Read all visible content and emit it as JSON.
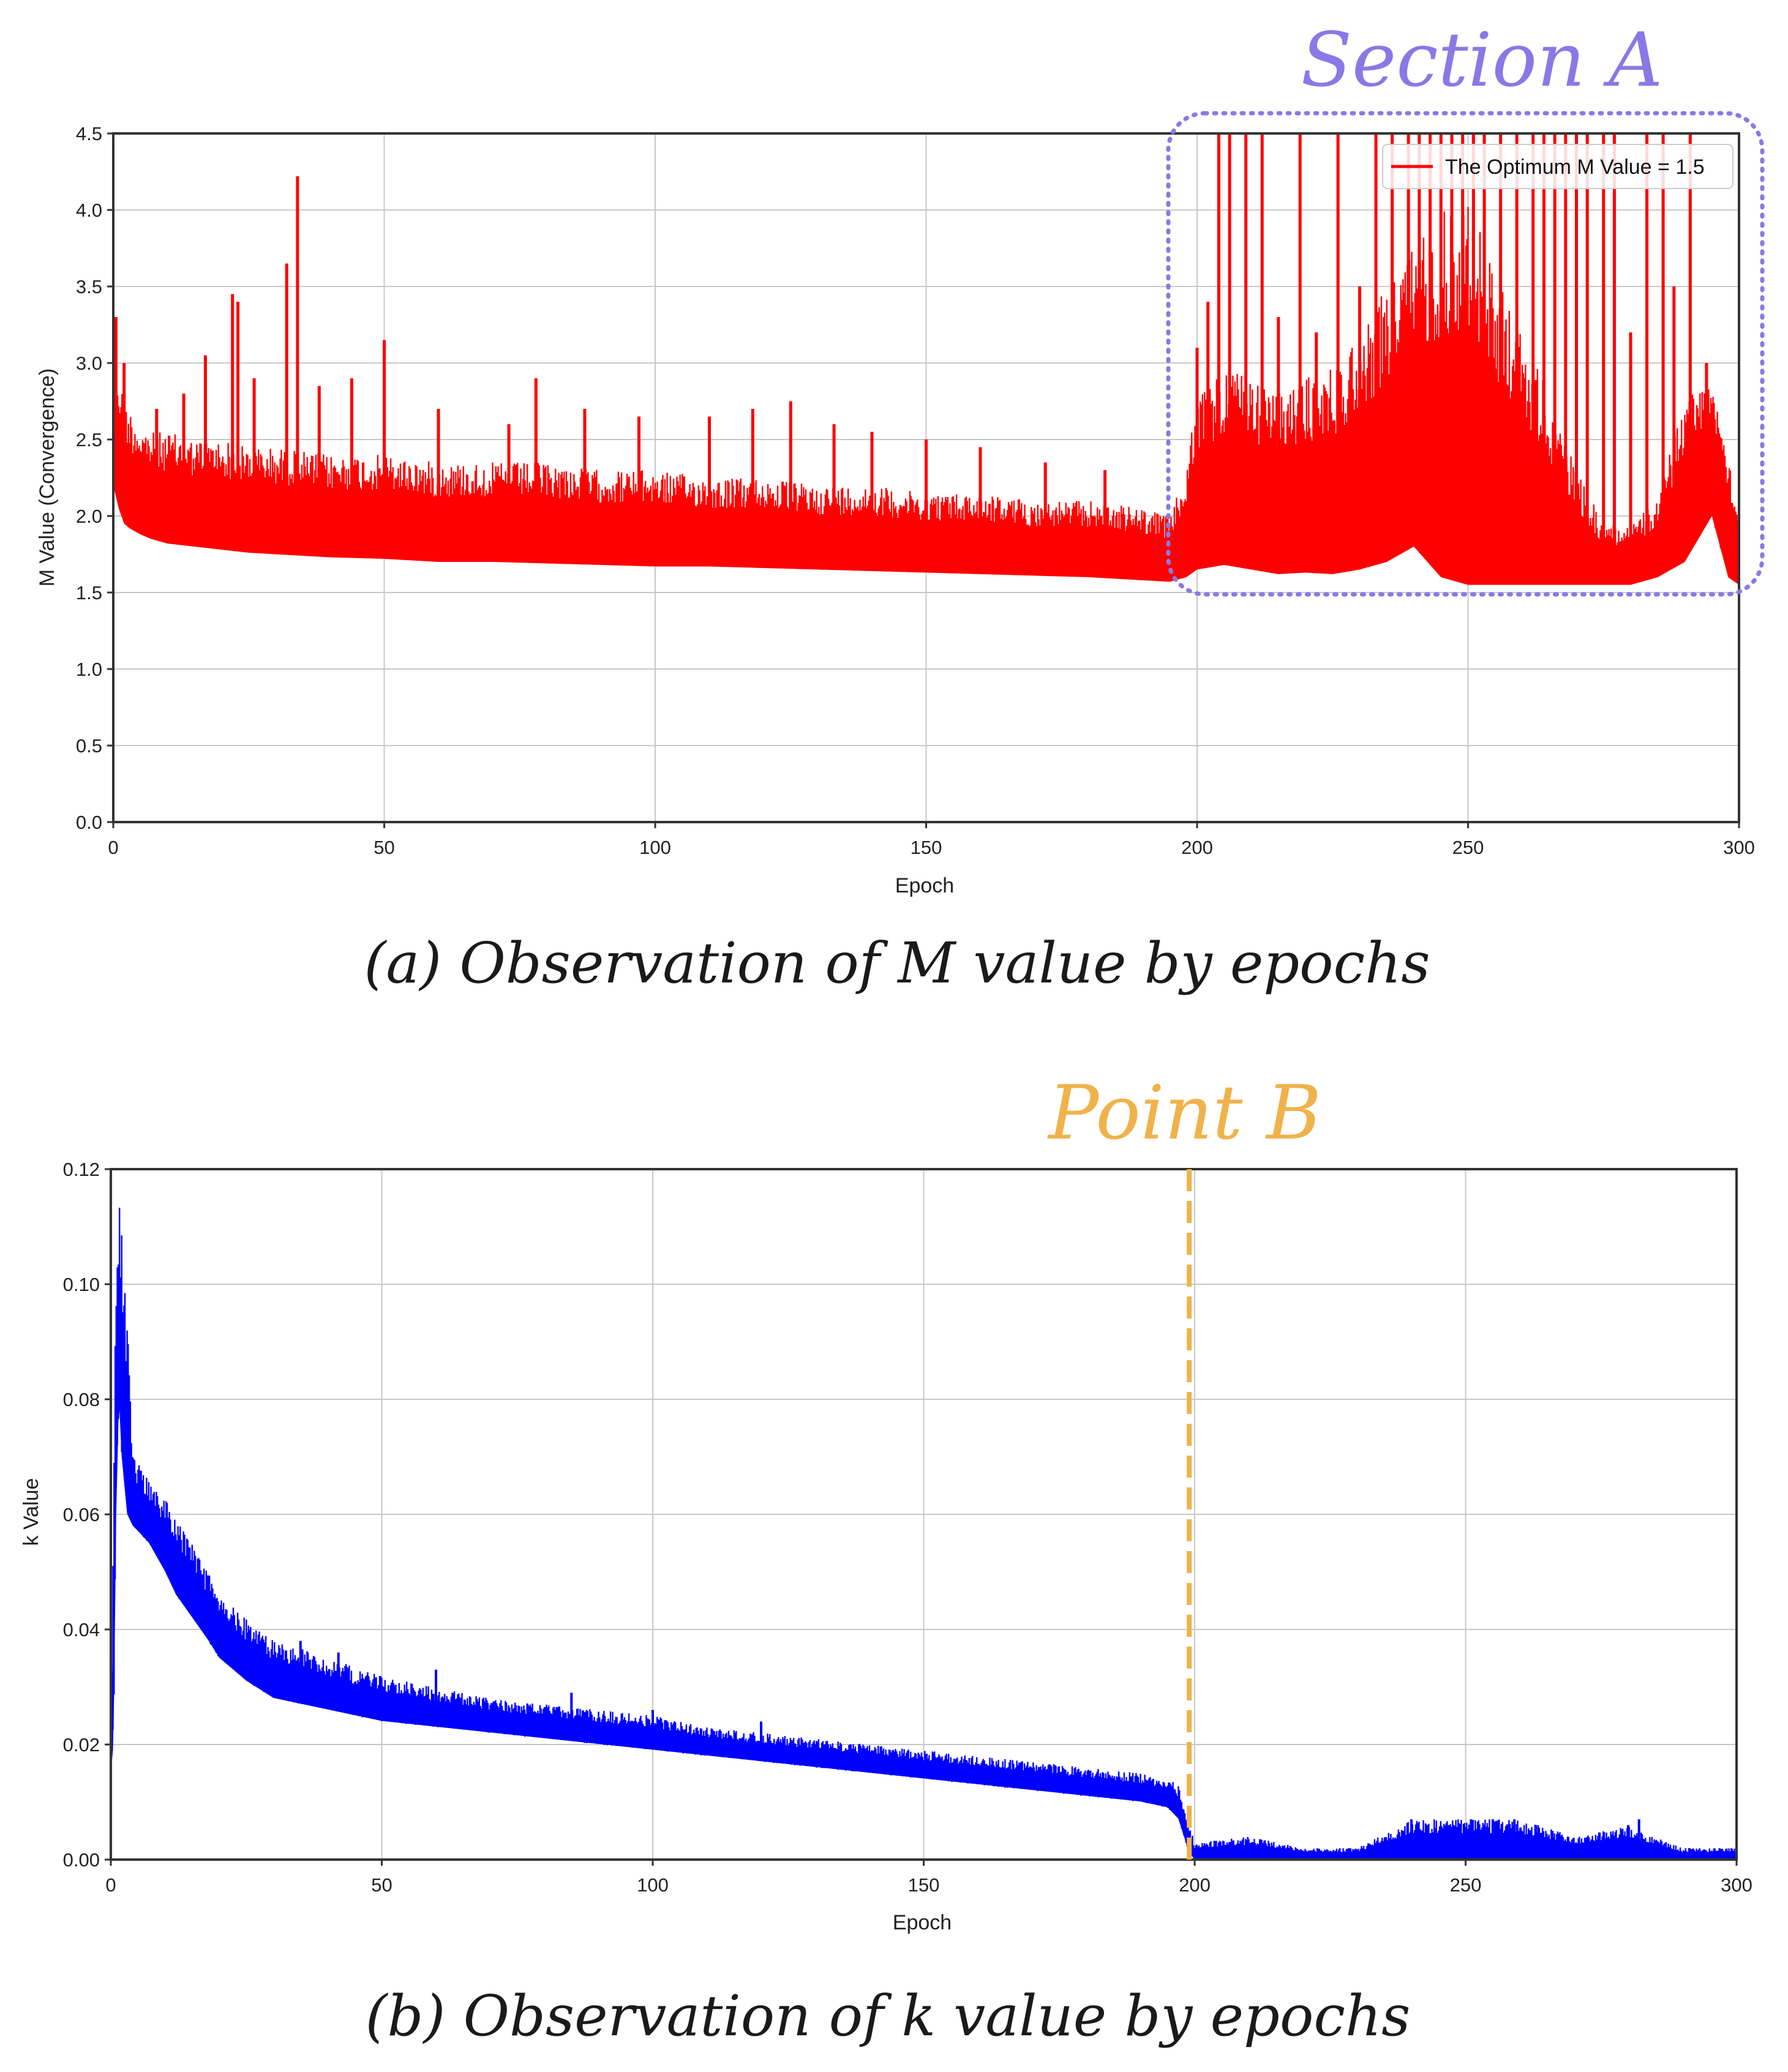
{
  "chart_data": [
    {
      "type": "line",
      "id": "m",
      "title": "",
      "xlabel": "Epoch",
      "ylabel": "M Value (Convergence)",
      "xlim": [
        0,
        300
      ],
      "ylim": [
        0,
        4.5
      ],
      "x_ticks": [
        0,
        50,
        100,
        150,
        200,
        250,
        300
      ],
      "y_ticks": [
        "0.0",
        "0.5",
        "1.0",
        "1.5",
        "2.0",
        "2.5",
        "3.0",
        "3.5",
        "4.0",
        "4.5"
      ],
      "grid": true,
      "legend": {
        "position": "top-right",
        "label": "The Optimum M Value = 1.5"
      },
      "caption": "(a) Observation of M value by epochs",
      "annotation": {
        "label": "Section A",
        "x_range": [
          195,
          300
        ],
        "y_range": [
          1.5,
          4.5
        ],
        "color": "#8a78e6"
      },
      "series": [
        {
          "name": "The Optimum M Value = 1.5",
          "color": "#ff0000",
          "x": [
            0,
            1,
            2,
            3,
            5,
            7,
            10,
            15,
            20,
            25,
            30,
            40,
            50,
            60,
            70,
            80,
            90,
            100,
            110,
            120,
            130,
            140,
            150,
            160,
            170,
            180,
            190,
            195,
            198,
            200,
            205,
            210,
            215,
            220,
            225,
            230,
            235,
            240,
            245,
            250,
            255,
            260,
            265,
            270,
            275,
            280,
            285,
            290,
            295,
            298,
            300
          ],
          "upper": [
            3.3,
            2.95,
            2.8,
            2.7,
            2.6,
            2.55,
            2.55,
            2.5,
            2.5,
            2.45,
            2.45,
            2.4,
            2.4,
            2.35,
            2.35,
            2.35,
            2.3,
            2.3,
            2.25,
            2.25,
            2.2,
            2.2,
            2.15,
            2.15,
            2.1,
            2.1,
            2.05,
            2.0,
            2.3,
            2.8,
            3.0,
            2.9,
            2.8,
            2.9,
            3.0,
            3.2,
            3.5,
            3.8,
            4.0,
            4.1,
            3.6,
            3.2,
            2.8,
            2.3,
            1.95,
            1.95,
            2.1,
            2.8,
            2.9,
            2.5,
            1.95
          ],
          "lower": [
            2.2,
            2.05,
            1.95,
            1.92,
            1.88,
            1.85,
            1.82,
            1.8,
            1.78,
            1.76,
            1.75,
            1.73,
            1.72,
            1.7,
            1.7,
            1.69,
            1.68,
            1.67,
            1.67,
            1.66,
            1.65,
            1.64,
            1.63,
            1.62,
            1.61,
            1.6,
            1.58,
            1.57,
            1.6,
            1.65,
            1.68,
            1.65,
            1.62,
            1.63,
            1.62,
            1.65,
            1.7,
            1.8,
            1.6,
            1.55,
            1.55,
            1.55,
            1.55,
            1.55,
            1.55,
            1.55,
            1.6,
            1.7,
            2.0,
            1.6,
            1.55
          ],
          "spikes": [
            [
              0.5,
              3.3
            ],
            [
              2,
              3.0
            ],
            [
              8,
              2.7
            ],
            [
              13,
              2.8
            ],
            [
              17,
              3.05
            ],
            [
              22,
              3.45
            ],
            [
              23,
              3.4
            ],
            [
              26,
              2.9
            ],
            [
              32,
              3.65
            ],
            [
              34,
              4.22
            ],
            [
              38,
              2.85
            ],
            [
              44,
              2.9
            ],
            [
              50,
              3.15
            ],
            [
              60,
              2.7
            ],
            [
              73,
              2.6
            ],
            [
              78,
              2.9
            ],
            [
              87,
              2.7
            ],
            [
              97,
              2.65
            ],
            [
              110,
              2.65
            ],
            [
              118,
              2.7
            ],
            [
              125,
              2.75
            ],
            [
              133,
              2.6
            ],
            [
              140,
              2.55
            ],
            [
              150,
              2.5
            ],
            [
              160,
              2.45
            ],
            [
              172,
              2.35
            ],
            [
              183,
              2.3
            ],
            [
              200,
              3.1
            ],
            [
              202,
              3.4
            ],
            [
              204,
              4.5
            ],
            [
              206,
              4.5
            ],
            [
              209,
              4.5
            ],
            [
              212,
              4.5
            ],
            [
              215,
              3.3
            ],
            [
              219,
              4.5
            ],
            [
              222,
              3.2
            ],
            [
              226,
              4.5
            ],
            [
              230,
              3.5
            ],
            [
              233,
              4.5
            ],
            [
              236,
              4.5
            ],
            [
              239,
              4.5
            ],
            [
              241,
              4.5
            ],
            [
              243,
              4.5
            ],
            [
              245,
              4.5
            ],
            [
              247,
              4.5
            ],
            [
              249,
              4.5
            ],
            [
              251,
              4.5
            ],
            [
              253,
              4.5
            ],
            [
              256,
              4.5
            ],
            [
              259,
              4.5
            ],
            [
              262,
              4.5
            ],
            [
              264,
              4.5
            ],
            [
              266,
              4.5
            ],
            [
              268,
              4.5
            ],
            [
              270,
              4.5
            ],
            [
              272,
              4.5
            ],
            [
              275,
              4.5
            ],
            [
              277,
              4.5
            ],
            [
              280,
              3.2
            ],
            [
              283,
              4.5
            ],
            [
              286,
              4.5
            ],
            [
              288,
              3.5
            ],
            [
              291,
              4.5
            ],
            [
              294,
              3.0
            ]
          ]
        }
      ]
    },
    {
      "type": "line",
      "id": "k",
      "title": "",
      "xlabel": "Epoch",
      "ylabel": "k Value",
      "xlim": [
        0,
        300
      ],
      "ylim": [
        0,
        0.12
      ],
      "x_ticks": [
        0,
        50,
        100,
        150,
        200,
        250,
        300
      ],
      "y_ticks": [
        "0.00",
        "0.02",
        "0.04",
        "0.06",
        "0.08",
        "0.10",
        "0.12"
      ],
      "grid": true,
      "caption": "(b) Observation of k value by epochs",
      "annotation": {
        "label": "Point B",
        "x": 199,
        "color": "#f0b24a"
      },
      "series": [
        {
          "name": "k Value",
          "color": "#0000ff",
          "x": [
            0,
            0.5,
            1,
            1.5,
            2,
            3,
            4,
            5,
            7,
            10,
            12,
            15,
            18,
            20,
            25,
            30,
            35,
            40,
            50,
            60,
            70,
            80,
            90,
            100,
            110,
            120,
            130,
            140,
            150,
            160,
            170,
            180,
            190,
            195,
            197,
            199,
            200,
            201,
            210,
            220,
            230,
            240,
            250,
            260,
            270,
            280,
            290,
            300
          ],
          "upper": [
            0.02,
            0.07,
            0.105,
            0.114,
            0.112,
            0.095,
            0.07,
            0.069,
            0.066,
            0.063,
            0.06,
            0.055,
            0.05,
            0.046,
            0.042,
            0.038,
            0.037,
            0.035,
            0.032,
            0.03,
            0.028,
            0.027,
            0.026,
            0.025,
            0.023,
            0.022,
            0.021,
            0.02,
            0.019,
            0.018,
            0.017,
            0.016,
            0.015,
            0.014,
            0.013,
            0.006,
            0.003,
            0.003,
            0.004,
            0.002,
            0.002,
            0.007,
            0.007,
            0.007,
            0.004,
            0.006,
            0.002,
            0.002
          ],
          "lower": [
            0.015,
            0.02,
            0.06,
            0.08,
            0.07,
            0.06,
            0.058,
            0.057,
            0.055,
            0.05,
            0.046,
            0.042,
            0.038,
            0.035,
            0.031,
            0.028,
            0.027,
            0.026,
            0.024,
            0.023,
            0.022,
            0.021,
            0.02,
            0.019,
            0.018,
            0.017,
            0.016,
            0.015,
            0.014,
            0.013,
            0.012,
            0.011,
            0.01,
            0.009,
            0.007,
            0.001,
            0.0,
            0.0,
            0.0,
            0.0,
            0.0,
            0.0,
            0.0,
            0.0,
            0.0,
            0.0,
            0.0,
            0.0
          ],
          "spikes": [
            [
              35,
              0.038
            ],
            [
              42,
              0.036
            ],
            [
              60,
              0.033
            ],
            [
              85,
              0.029
            ],
            [
              100,
              0.026
            ],
            [
              120,
              0.024
            ],
            [
              240,
              0.007
            ],
            [
              243,
              0.006
            ],
            [
              247,
              0.006
            ],
            [
              251,
              0.007
            ],
            [
              255,
              0.007
            ],
            [
              259,
              0.007
            ],
            [
              263,
              0.006
            ],
            [
              266,
              0.005
            ],
            [
              280,
              0.006
            ],
            [
              282,
              0.007
            ]
          ]
        }
      ]
    }
  ]
}
